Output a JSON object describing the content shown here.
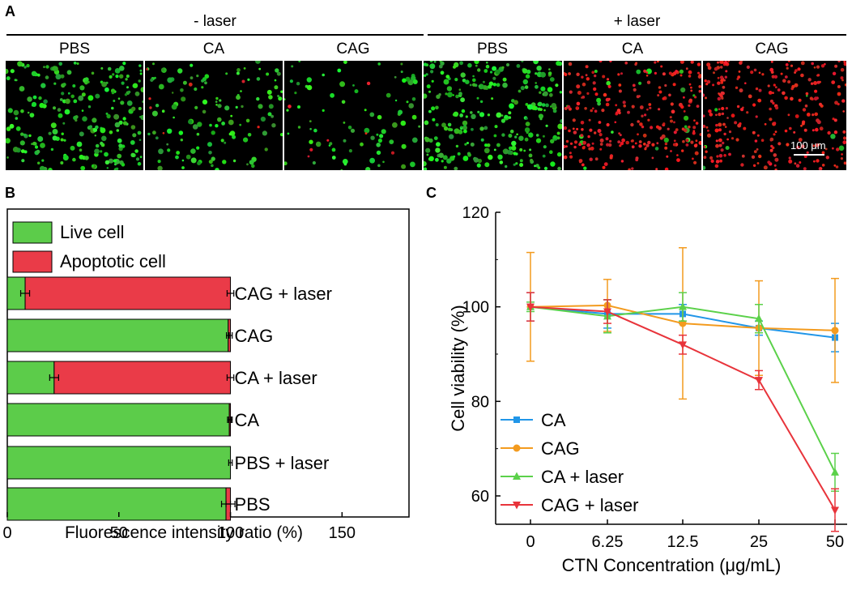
{
  "panel_a": {
    "letter": "A",
    "group_minus": "- laser",
    "group_plus": "+ laser",
    "conditions": [
      "PBS",
      "CA",
      "CAG",
      "PBS",
      "CA",
      "CAG"
    ],
    "scale_bar": "100 μm"
  },
  "panel_b_letter": "B",
  "panel_c_letter": "C",
  "chart_data": [
    {
      "type": "bar",
      "orientation": "horizontal",
      "stacked": true,
      "categories": [
        "CAG + laser",
        "CAG",
        "CA + laser",
        "CA",
        "PBS + laser",
        "PBS"
      ],
      "series": [
        {
          "name": "Live cell",
          "color": "#5ccc4a",
          "values": [
            8,
            99,
            21,
            99.5,
            100,
            98
          ],
          "errors": [
            2,
            0.8,
            2,
            0.8,
            0.8,
            2
          ]
        },
        {
          "name": "Apoptotic cell",
          "color": "#ea3b48",
          "values": [
            92,
            1,
            79,
            0.5,
            0,
            2
          ],
          "errors": [
            1.5,
            0,
            1.5,
            0,
            0,
            2
          ]
        }
      ],
      "xlabel": "Fluorescence intensity ratio (%)",
      "xlim": [
        0,
        180
      ],
      "xticks": [
        "0",
        "50",
        "100",
        "150"
      ],
      "legend_position": "top-left"
    },
    {
      "type": "line",
      "categories": [
        "0",
        "6.25",
        "12.5",
        "25",
        "50"
      ],
      "series": [
        {
          "name": "CA",
          "color": "#2196e8",
          "marker": "square",
          "values": [
            100,
            98.5,
            98.5,
            95.5,
            93.5
          ],
          "errors": [
            3,
            3,
            2,
            1.5,
            3
          ]
        },
        {
          "name": "CAG",
          "color": "#f39b1f",
          "marker": "circle",
          "values": [
            100,
            100.3,
            96.5,
            95.5,
            95
          ],
          "errors": [
            11.5,
            5.5,
            16,
            10,
            11
          ]
        },
        {
          "name": "CA + laser",
          "color": "#5bd14a",
          "marker": "triangle-up",
          "values": [
            100,
            98,
            100,
            97.5,
            65
          ],
          "errors": [
            1,
            3.5,
            3,
            3,
            4
          ]
        },
        {
          "name": "CAG + laser",
          "color": "#e8343b",
          "marker": "triangle-down",
          "values": [
            100,
            99,
            92,
            84.5,
            57
          ],
          "errors": [
            3,
            2.5,
            2,
            2,
            4.5
          ]
        }
      ],
      "xlabel": "CTN Concentration (μg/mL)",
      "ylabel": "Cell viability (%)",
      "ylim": [
        54,
        120
      ],
      "yticks": [
        "60",
        "80",
        "100",
        "120"
      ],
      "legend_position": "bottom-left"
    }
  ]
}
